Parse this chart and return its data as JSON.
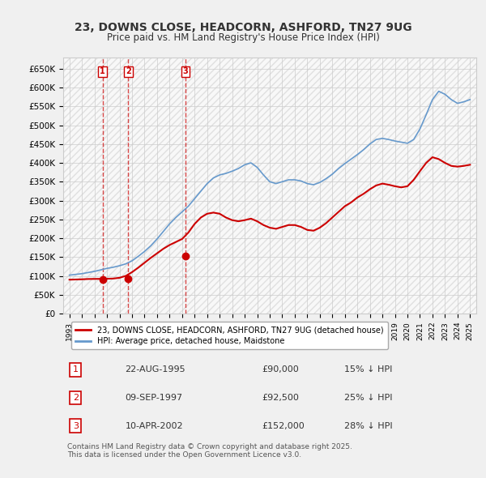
{
  "title": "23, DOWNS CLOSE, HEADCORN, ASHFORD, TN27 9UG",
  "subtitle": "Price paid vs. HM Land Registry's House Price Index (HPI)",
  "legend_label_red": "23, DOWNS CLOSE, HEADCORN, ASHFORD, TN27 9UG (detached house)",
  "legend_label_blue": "HPI: Average price, detached house, Maidstone",
  "transactions": [
    {
      "num": 1,
      "date": "22-AUG-1995",
      "price": 90000,
      "year": 1995.64,
      "pct": "15% ↓ HPI"
    },
    {
      "num": 2,
      "date": "09-SEP-1997",
      "price": 92500,
      "year": 1997.69,
      "pct": "25% ↓ HPI"
    },
    {
      "num": 3,
      "date": "10-APR-2002",
      "price": 152000,
      "year": 2002.27,
      "pct": "28% ↓ HPI"
    }
  ],
  "footer": "Contains HM Land Registry data © Crown copyright and database right 2025.\nThis data is licensed under the Open Government Licence v3.0.",
  "ylim": [
    0,
    680000
  ],
  "yticks": [
    0,
    50000,
    100000,
    150000,
    200000,
    250000,
    300000,
    350000,
    400000,
    450000,
    500000,
    550000,
    600000,
    650000
  ],
  "background_color": "#f0f0f0",
  "plot_bg_color": "#ffffff",
  "red_color": "#cc0000",
  "blue_color": "#6699cc",
  "grid_color": "#cccccc",
  "hpi_x": [
    1993,
    1993.5,
    1994,
    1994.5,
    1995,
    1995.5,
    1996,
    1996.5,
    1997,
    1997.5,
    1998,
    1998.5,
    1999,
    1999.5,
    2000,
    2000.5,
    2001,
    2001.5,
    2002,
    2002.5,
    2003,
    2003.5,
    2004,
    2004.5,
    2005,
    2005.5,
    2006,
    2006.5,
    2007,
    2007.5,
    2008,
    2008.5,
    2009,
    2009.5,
    2010,
    2010.5,
    2011,
    2011.5,
    2012,
    2012.5,
    2013,
    2013.5,
    2014,
    2014.5,
    2015,
    2015.5,
    2016,
    2016.5,
    2017,
    2017.5,
    2018,
    2018.5,
    2019,
    2019.5,
    2020,
    2020.5,
    2021,
    2021.5,
    2022,
    2022.5,
    2023,
    2023.5,
    2024,
    2024.5,
    2025
  ],
  "hpi_y": [
    102000,
    104000,
    106000,
    109000,
    112000,
    116000,
    120000,
    123000,
    127000,
    132000,
    140000,
    152000,
    165000,
    180000,
    198000,
    218000,
    238000,
    255000,
    270000,
    285000,
    305000,
    325000,
    345000,
    360000,
    368000,
    372000,
    378000,
    385000,
    395000,
    400000,
    388000,
    368000,
    350000,
    345000,
    350000,
    355000,
    355000,
    352000,
    345000,
    342000,
    348000,
    358000,
    370000,
    385000,
    398000,
    410000,
    422000,
    435000,
    450000,
    462000,
    465000,
    462000,
    458000,
    455000,
    452000,
    462000,
    490000,
    528000,
    568000,
    590000,
    582000,
    568000,
    558000,
    562000,
    568000
  ],
  "price_x": [
    1993,
    1993.5,
    1994,
    1994.5,
    1995,
    1995.5,
    1996,
    1996.5,
    1997,
    1997.5,
    1998,
    1998.5,
    1999,
    1999.5,
    2000,
    2000.5,
    2001,
    2001.5,
    2002,
    2002.5,
    2003,
    2003.5,
    2004,
    2004.5,
    2005,
    2005.5,
    2006,
    2006.5,
    2007,
    2007.5,
    2008,
    2008.5,
    2009,
    2009.5,
    2010,
    2010.5,
    2011,
    2011.5,
    2012,
    2012.5,
    2013,
    2013.5,
    2014,
    2014.5,
    2015,
    2015.5,
    2016,
    2016.5,
    2017,
    2017.5,
    2018,
    2018.5,
    2019,
    2019.5,
    2020,
    2020.5,
    2021,
    2021.5,
    2022,
    2022.5,
    2023,
    2023.5,
    2024,
    2024.5,
    2025
  ],
  "price_y": [
    90000,
    90500,
    91000,
    91800,
    92000,
    92200,
    92500,
    93000,
    95000,
    100000,
    110000,
    122000,
    135000,
    148000,
    160000,
    172000,
    182000,
    190000,
    198000,
    215000,
    238000,
    255000,
    265000,
    268000,
    265000,
    255000,
    248000,
    245000,
    248000,
    252000,
    245000,
    235000,
    228000,
    225000,
    230000,
    235000,
    235000,
    230000,
    222000,
    220000,
    228000,
    240000,
    255000,
    270000,
    285000,
    295000,
    308000,
    318000,
    330000,
    340000,
    345000,
    342000,
    338000,
    335000,
    338000,
    355000,
    378000,
    400000,
    415000,
    410000,
    400000,
    392000,
    390000,
    392000,
    395000
  ]
}
